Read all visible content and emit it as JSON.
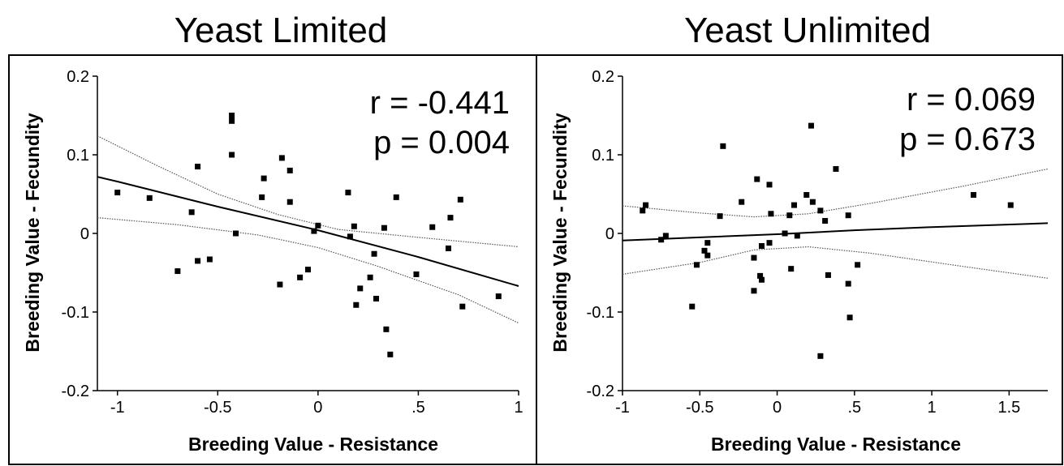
{
  "chart_data": [
    {
      "type": "scatter",
      "title": "Yeast Limited",
      "xlabel": "Breeding Value - Resistance",
      "ylabel": "Breeding Value - Fecundity",
      "xlim": [
        -1.1,
        1.0
      ],
      "ylim": [
        -0.2,
        0.2
      ],
      "x_ticks": [
        {
          "v": -1,
          "label": "-1"
        },
        {
          "v": -0.5,
          "label": "-0.5"
        },
        {
          "v": 0,
          "label": "0"
        },
        {
          "v": 0.5,
          "label": ".5"
        },
        {
          "v": 1,
          "label": "1"
        }
      ],
      "y_ticks": [
        {
          "v": 0.2,
          "label": "0.2"
        },
        {
          "v": 0.1,
          "label": "0.1"
        },
        {
          "v": 0,
          "label": "0"
        },
        {
          "v": -0.1,
          "label": "-0.1"
        },
        {
          "v": -0.2,
          "label": "-0.2"
        }
      ],
      "annotations": [
        "r = -0.441",
        "p = 0.004"
      ],
      "grid": false,
      "points": [
        [
          -1.0,
          0.052
        ],
        [
          -0.84,
          0.045
        ],
        [
          -0.7,
          -0.048
        ],
        [
          -0.63,
          0.027
        ],
        [
          -0.6,
          0.085
        ],
        [
          -0.6,
          -0.035
        ],
        [
          -0.54,
          -0.033
        ],
        [
          -0.43,
          0.15
        ],
        [
          -0.43,
          0.143
        ],
        [
          -0.43,
          0.1
        ],
        [
          -0.41,
          0.0
        ],
        [
          -0.27,
          0.07
        ],
        [
          -0.28,
          0.046
        ],
        [
          -0.18,
          0.096
        ],
        [
          -0.14,
          0.08
        ],
        [
          -0.14,
          0.04
        ],
        [
          -0.19,
          -0.065
        ],
        [
          -0.09,
          -0.056
        ],
        [
          -0.05,
          -0.046
        ],
        [
          -0.02,
          0.003
        ],
        [
          0.0,
          0.01
        ],
        [
          0.15,
          0.052
        ],
        [
          0.16,
          -0.004
        ],
        [
          0.18,
          0.009
        ],
        [
          0.19,
          -0.091
        ],
        [
          0.21,
          -0.07
        ],
        [
          0.26,
          -0.056
        ],
        [
          0.28,
          -0.026
        ],
        [
          0.29,
          -0.083
        ],
        [
          0.33,
          0.007
        ],
        [
          0.34,
          -0.122
        ],
        [
          0.36,
          -0.154
        ],
        [
          0.39,
          0.046
        ],
        [
          0.49,
          -0.052
        ],
        [
          0.57,
          0.008
        ],
        [
          0.65,
          -0.019
        ],
        [
          0.66,
          0.02
        ],
        [
          0.71,
          0.043
        ],
        [
          0.72,
          -0.093
        ],
        [
          0.9,
          -0.08
        ]
      ],
      "fit_line": [
        [
          -1.1,
          0.072
        ],
        [
          -1.0,
          0.066
        ],
        [
          -0.5,
          0.034
        ],
        [
          0.0,
          0.004
        ],
        [
          0.5,
          -0.03
        ],
        [
          1.0,
          -0.067
        ]
      ],
      "ci_upper": [
        [
          -1.1,
          0.124
        ],
        [
          -0.8,
          0.086
        ],
        [
          -0.5,
          0.05
        ],
        [
          -0.2,
          0.024
        ],
        [
          0.1,
          0.005
        ],
        [
          0.5,
          -0.005
        ],
        [
          1.0,
          -0.017
        ]
      ],
      "ci_lower": [
        [
          -1.1,
          0.02
        ],
        [
          -0.7,
          0.011
        ],
        [
          -0.3,
          -0.002
        ],
        [
          0.0,
          -0.018
        ],
        [
          0.3,
          -0.042
        ],
        [
          0.7,
          -0.078
        ],
        [
          1.0,
          -0.114
        ]
      ]
    },
    {
      "type": "scatter",
      "title": "Yeast Unlimited",
      "xlabel": "Breeding Value - Resistance",
      "ylabel": "Breeding Value - Fecundity",
      "xlim": [
        -1.0,
        1.75
      ],
      "ylim": [
        -0.2,
        0.2
      ],
      "x_ticks": [
        {
          "v": -1,
          "label": "-1"
        },
        {
          "v": -0.5,
          "label": "-0.5"
        },
        {
          "v": 0,
          "label": "0"
        },
        {
          "v": 0.5,
          "label": ".5"
        },
        {
          "v": 1,
          "label": "1"
        },
        {
          "v": 1.5,
          "label": "1.5"
        }
      ],
      "y_ticks": [
        {
          "v": 0.2,
          "label": "0.2"
        },
        {
          "v": 0.1,
          "label": "0.1"
        },
        {
          "v": 0,
          "label": "0"
        },
        {
          "v": -0.1,
          "label": "-0.1"
        },
        {
          "v": -0.2,
          "label": "-0.2"
        }
      ],
      "annotations": [
        "r = 0.069",
        "p = 0.673"
      ],
      "grid": false,
      "points": [
        [
          -0.87,
          0.029
        ],
        [
          -0.85,
          0.036
        ],
        [
          -0.75,
          -0.008
        ],
        [
          -0.72,
          -0.003
        ],
        [
          -0.55,
          -0.093
        ],
        [
          -0.52,
          -0.04
        ],
        [
          -0.47,
          -0.022
        ],
        [
          -0.45,
          -0.012
        ],
        [
          -0.45,
          -0.028
        ],
        [
          -0.37,
          0.022
        ],
        [
          -0.35,
          0.111
        ],
        [
          -0.23,
          0.04
        ],
        [
          -0.15,
          -0.031
        ],
        [
          -0.15,
          -0.073
        ],
        [
          -0.13,
          0.069
        ],
        [
          -0.11,
          -0.054
        ],
        [
          -0.1,
          -0.059
        ],
        [
          -0.1,
          -0.016
        ],
        [
          -0.05,
          0.062
        ],
        [
          -0.05,
          -0.012
        ],
        [
          -0.04,
          0.025
        ],
        [
          0.05,
          0.0
        ],
        [
          0.08,
          0.023
        ],
        [
          0.09,
          -0.045
        ],
        [
          0.11,
          0.036
        ],
        [
          0.13,
          -0.003
        ],
        [
          0.19,
          0.049
        ],
        [
          0.22,
          0.137
        ],
        [
          0.23,
          0.04
        ],
        [
          0.28,
          -0.156
        ],
        [
          0.28,
          0.029
        ],
        [
          0.31,
          0.016
        ],
        [
          0.33,
          -0.053
        ],
        [
          0.38,
          0.082
        ],
        [
          0.46,
          0.023
        ],
        [
          0.46,
          -0.064
        ],
        [
          0.47,
          -0.107
        ],
        [
          0.52,
          -0.04
        ],
        [
          1.27,
          0.049
        ],
        [
          1.51,
          0.036
        ]
      ],
      "fit_line": [
        [
          -1.0,
          -0.009
        ],
        [
          -0.5,
          -0.005
        ],
        [
          0.0,
          -0.001
        ],
        [
          0.5,
          0.004
        ],
        [
          1.0,
          0.008
        ],
        [
          1.75,
          0.013
        ]
      ],
      "ci_upper": [
        [
          -1.0,
          0.035
        ],
        [
          -0.5,
          0.026
        ],
        [
          -0.15,
          0.021
        ],
        [
          0.2,
          0.025
        ],
        [
          0.6,
          0.038
        ],
        [
          1.2,
          0.06
        ],
        [
          1.75,
          0.082
        ]
      ],
      "ci_lower": [
        [
          -1.0,
          -0.052
        ],
        [
          -0.5,
          -0.037
        ],
        [
          -0.15,
          -0.021
        ],
        [
          0.2,
          -0.017
        ],
        [
          0.6,
          -0.025
        ],
        [
          1.2,
          -0.042
        ],
        [
          1.75,
          -0.057
        ]
      ]
    }
  ]
}
